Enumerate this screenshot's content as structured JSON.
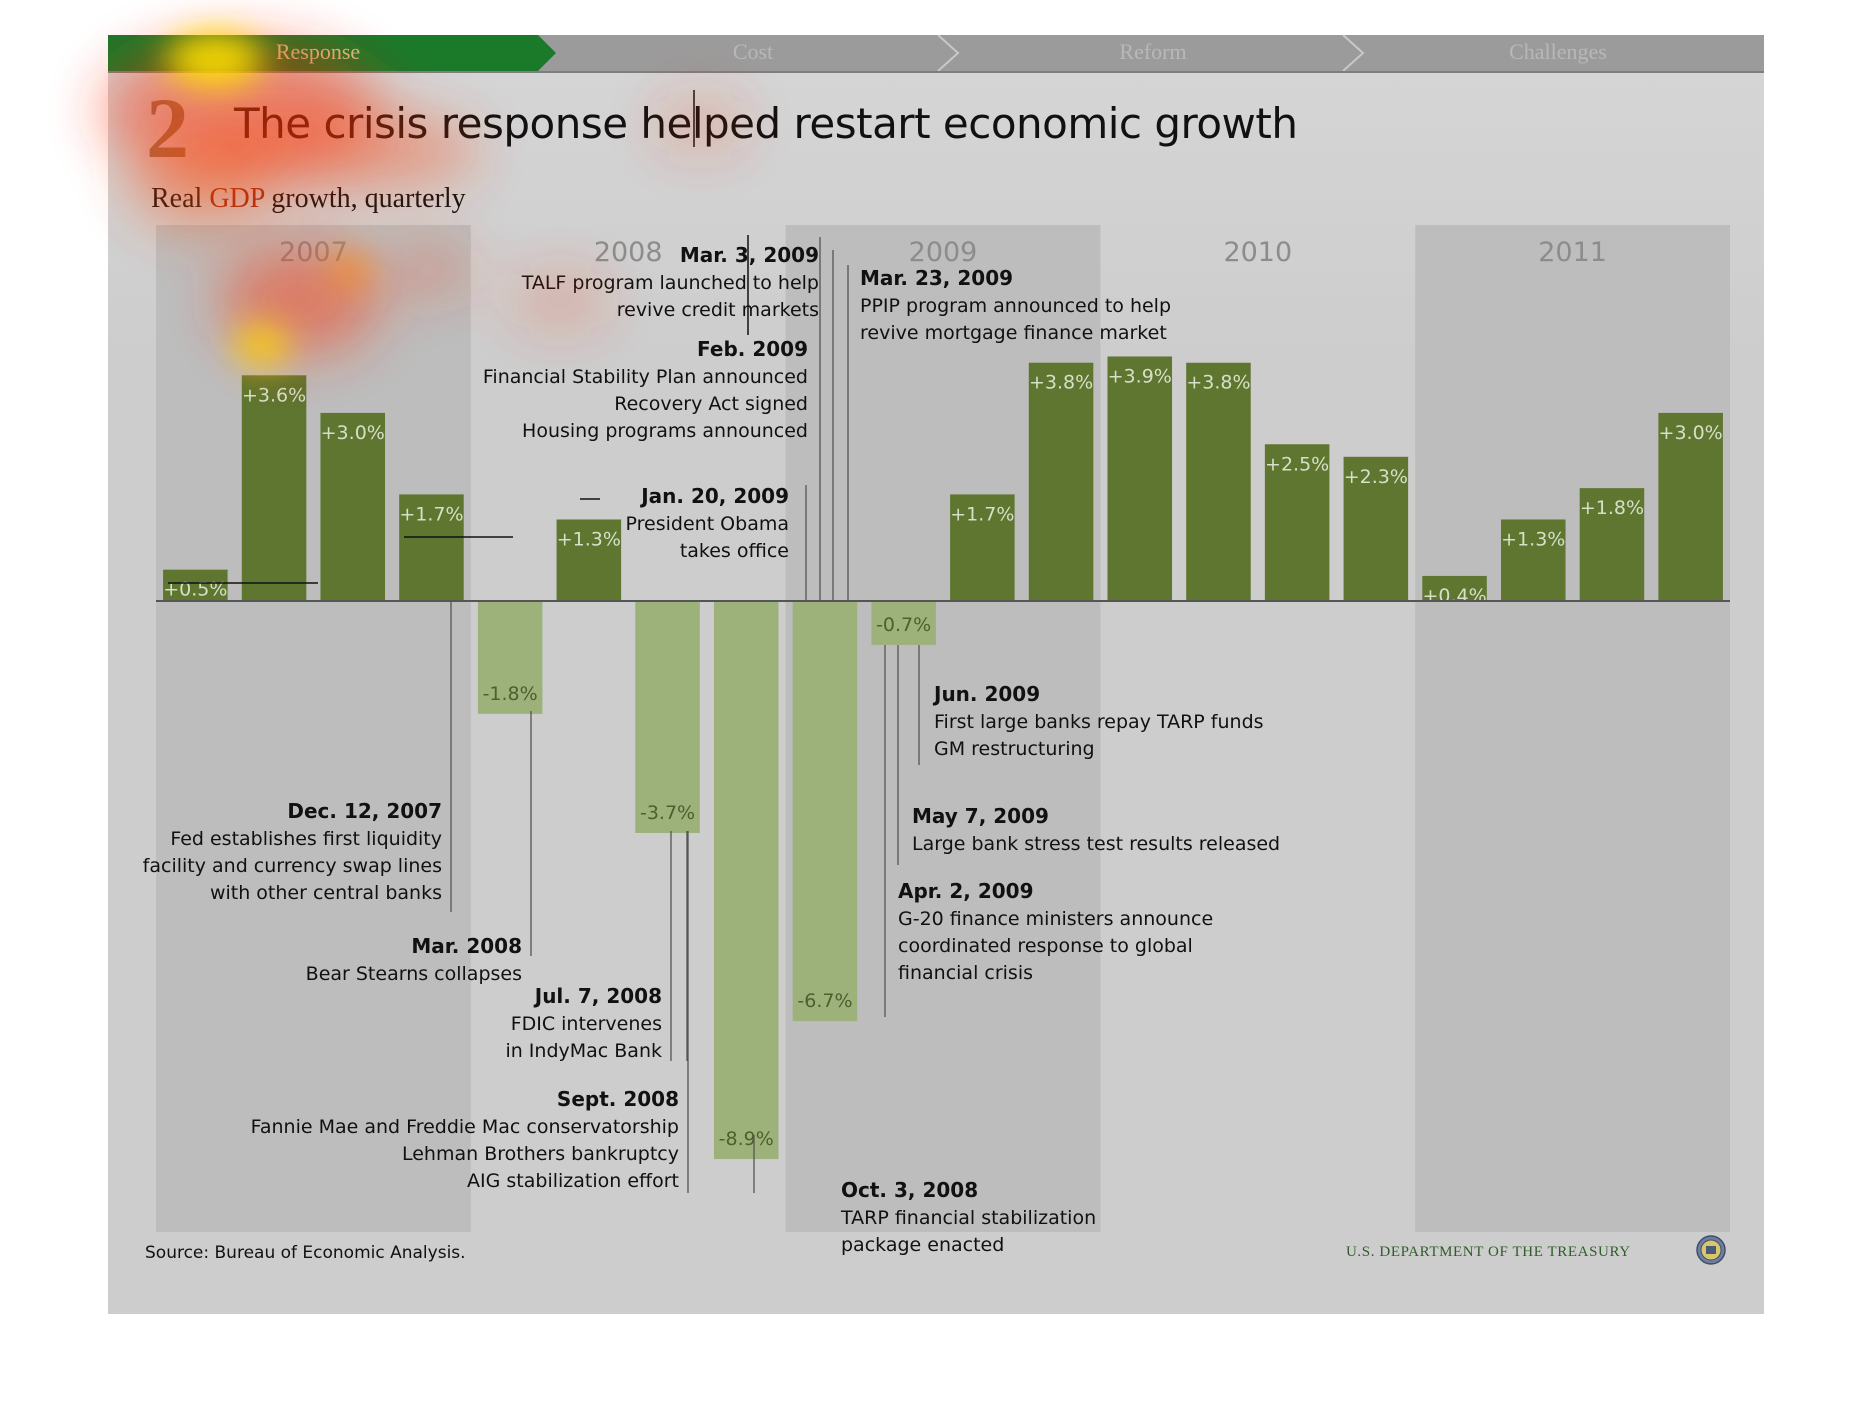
{
  "nav": {
    "items": [
      "Response",
      "Cost",
      "Reform",
      "Challenges"
    ],
    "active_index": 0,
    "active_color": "#1a7a2a",
    "inactive_color": "#9b9b9b"
  },
  "title": {
    "number": "2",
    "text": "The crisis response helped restart economic growth"
  },
  "subtitle": {
    "part1": "Real ",
    "part2": "GDP",
    "part3": " growth, quarterly"
  },
  "chart_data": {
    "type": "bar",
    "title": "Real GDP growth, quarterly",
    "years": [
      "2007",
      "2008",
      "2009",
      "2010",
      "2011"
    ],
    "categories": [
      "2007 Q1",
      "2007 Q2",
      "2007 Q3",
      "2007 Q4",
      "2008 Q1",
      "2008 Q2",
      "2008 Q3",
      "2008 Q4",
      "2009 Q1",
      "2009 Q2",
      "2009 Q3",
      "2009 Q4",
      "2010 Q1",
      "2010 Q2",
      "2010 Q3",
      "2010 Q4",
      "2011 Q1",
      "2011 Q2",
      "2011 Q3",
      "2011 Q4"
    ],
    "values": [
      0.5,
      3.6,
      3.0,
      1.7,
      -1.8,
      1.3,
      -3.7,
      -8.9,
      -6.7,
      -0.7,
      1.7,
      3.8,
      3.9,
      3.8,
      2.5,
      2.3,
      0.4,
      1.3,
      1.8,
      3.0
    ],
    "labels": [
      "+0.5%",
      "+3.6%",
      "+3.0%",
      "+1.7%",
      "-1.8%",
      "+1.3%",
      "-3.7%",
      "-8.9%",
      "-6.7%",
      "-0.7%",
      "+1.7%",
      "+3.8%",
      "+3.9%",
      "+3.8%",
      "+2.5%",
      "+2.3%",
      "+0.4%",
      "+1.3%",
      "+1.8%",
      "+3.0%"
    ],
    "positive_color": "#5e7630",
    "negative_color": "#9db17b",
    "year_band_color": "#bdbdbd",
    "ylim": [
      -10,
      4.5
    ],
    "annotations": [
      {
        "date": "Dec. 12, 2007",
        "text": [
          "Fed establishes first liquidity",
          "facility and currency swap lines",
          "with other central banks"
        ]
      },
      {
        "date": "Mar. 2008",
        "text": [
          "Bear Stearns collapses"
        ]
      },
      {
        "date": "Jul. 7, 2008",
        "text": [
          "FDIC intervenes",
          "in IndyMac Bank"
        ]
      },
      {
        "date": "Sept. 2008",
        "text": [
          "Fannie Mae and Freddie Mac conservatorship",
          "Lehman Brothers bankruptcy",
          "AIG stabilization effort"
        ]
      },
      {
        "date": "Oct. 3, 2008",
        "text": [
          "TARP financial stabilization",
          "package enacted"
        ]
      },
      {
        "date": "Jan. 20, 2009",
        "text": [
          "President Obama",
          "takes office"
        ]
      },
      {
        "date": "Feb. 2009",
        "text": [
          "Financial Stability Plan announced",
          "Recovery Act signed",
          "Housing programs announced"
        ]
      },
      {
        "date": "Mar. 3, 2009",
        "text": [
          "TALF program launched to help",
          "revive credit markets"
        ]
      },
      {
        "date": "Mar. 23, 2009",
        "text": [
          "PPIP program announced to help",
          "revive mortgage finance market"
        ]
      },
      {
        "date": "Apr. 2, 2009",
        "text": [
          "G-20 finance ministers announce",
          "coordinated response to global",
          "financial crisis"
        ]
      },
      {
        "date": "May 7, 2009",
        "text": [
          "Large bank stress test results released"
        ]
      },
      {
        "date": "Jun. 2009",
        "text": [
          "First large banks repay TARP funds",
          "GM restructuring"
        ]
      }
    ]
  },
  "source": "Source: Bureau of Economic Analysis.",
  "footer": {
    "agency": "U.S. DEPARTMENT OF THE TREASURY"
  }
}
